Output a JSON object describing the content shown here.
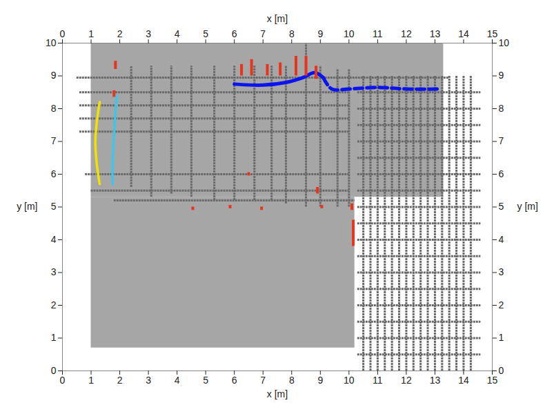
{
  "chart_data": {
    "type": "profiles",
    "x_label": "x [m]",
    "y_label": "y [m]",
    "xlim": [
      0,
      15
    ],
    "ylim": [
      0,
      10
    ],
    "xticks": [
      0,
      1,
      2,
      3,
      4,
      5,
      6,
      7,
      8,
      9,
      10,
      11,
      12,
      13,
      14,
      15
    ],
    "yticks": [
      0,
      1,
      2,
      3,
      4,
      5,
      6,
      7,
      8,
      9,
      10
    ],
    "grid": false,
    "background": {
      "color": "#a6a6a6",
      "rects": [
        [
          1.0,
          5.3,
          13.3,
          10.0
        ],
        [
          1.0,
          0.7,
          10.2,
          5.3
        ]
      ]
    },
    "vertical_profiles": {
      "color": "#6a6a6a",
      "lines": [
        [
          2.4,
          5.6,
          9.3
        ],
        [
          3.1,
          5.3,
          9.3
        ],
        [
          3.8,
          5.4,
          9.3
        ],
        [
          4.5,
          5.3,
          9.3
        ],
        [
          5.3,
          5.2,
          9.3
        ],
        [
          6.0,
          5.2,
          9.3
        ],
        [
          6.7,
          5.2,
          9.3
        ],
        [
          7.3,
          5.2,
          9.3
        ],
        [
          7.8,
          5.1,
          9.3
        ],
        [
          8.5,
          5.0,
          10.0
        ],
        [
          9.0,
          5.0,
          9.3
        ],
        [
          9.6,
          5.0,
          9.2
        ],
        [
          10.0,
          5.0,
          9.2
        ],
        [
          10.5,
          0.0,
          9.0
        ],
        [
          10.75,
          0.0,
          9.0
        ],
        [
          11.0,
          0.0,
          9.0
        ],
        [
          11.25,
          0.0,
          9.0
        ],
        [
          11.5,
          0.0,
          9.0
        ],
        [
          11.75,
          0.0,
          9.0
        ],
        [
          12.0,
          0.0,
          9.0
        ],
        [
          12.25,
          0.0,
          9.0
        ],
        [
          12.5,
          0.0,
          9.0
        ],
        [
          12.75,
          0.0,
          9.0
        ],
        [
          13.0,
          0.0,
          9.0
        ],
        [
          13.25,
          0.0,
          9.0
        ],
        [
          13.5,
          0.0,
          9.0
        ],
        [
          13.75,
          0.0,
          9.0
        ],
        [
          14.0,
          0.0,
          9.0
        ],
        [
          14.25,
          0.0,
          9.0
        ]
      ]
    },
    "horizontal_profiles": {
      "color": "#6a6a6a",
      "lines": [
        [
          8.95,
          0.5,
          13.5
        ],
        [
          8.5,
          0.6,
          10.0
        ],
        [
          8.1,
          0.6,
          10.0
        ],
        [
          7.7,
          0.6,
          10.0
        ],
        [
          7.3,
          0.6,
          10.0
        ],
        [
          6.0,
          0.8,
          10.0
        ],
        [
          5.5,
          1.0,
          10.0
        ],
        [
          5.2,
          1.8,
          10.2
        ],
        [
          0.5,
          10.3,
          14.6
        ],
        [
          1.0,
          10.3,
          14.6
        ],
        [
          1.5,
          10.3,
          14.6
        ],
        [
          2.0,
          10.3,
          14.6
        ],
        [
          2.5,
          10.3,
          14.6
        ],
        [
          3.0,
          10.3,
          14.6
        ],
        [
          3.5,
          10.3,
          14.6
        ],
        [
          4.0,
          10.3,
          14.6
        ],
        [
          4.5,
          10.3,
          14.6
        ],
        [
          5.0,
          10.3,
          14.6
        ],
        [
          5.5,
          10.3,
          14.6
        ],
        [
          6.0,
          10.3,
          14.6
        ],
        [
          6.5,
          10.3,
          14.6
        ],
        [
          7.0,
          10.3,
          14.6
        ],
        [
          7.5,
          10.3,
          14.6
        ],
        [
          8.0,
          10.3,
          14.6
        ],
        [
          8.5,
          10.3,
          14.6
        ]
      ]
    },
    "series": [
      {
        "color": "#f2e200",
        "line_style": "solid",
        "points": [
          [
            1.3,
            5.7
          ],
          [
            1.2,
            6.3
          ],
          [
            1.15,
            7.0
          ],
          [
            1.2,
            7.6
          ],
          [
            1.3,
            8.2
          ]
        ]
      },
      {
        "color": "#3cc6ee",
        "line_style": "solid",
        "points": [
          [
            1.75,
            5.7
          ],
          [
            1.75,
            6.4
          ],
          [
            1.8,
            7.2
          ],
          [
            1.85,
            7.9
          ],
          [
            1.9,
            8.4
          ]
        ]
      },
      {
        "color": "#0a14f0",
        "line_style": "solid",
        "points": [
          [
            6.0,
            8.75
          ],
          [
            7.0,
            8.72
          ],
          [
            7.8,
            8.8
          ],
          [
            8.4,
            8.95
          ],
          [
            8.8,
            9.1
          ],
          [
            9.1,
            8.95
          ]
        ]
      },
      {
        "color": "#0a14f0",
        "line_style": "dashed",
        "points": [
          [
            9.1,
            8.95
          ],
          [
            9.4,
            8.6
          ],
          [
            10.0,
            8.6
          ],
          [
            11.0,
            8.65
          ],
          [
            12.0,
            8.6
          ],
          [
            13.2,
            8.6
          ]
        ]
      }
    ],
    "anomalies": {
      "color": "#e8341c",
      "marks": [
        [
          1.8,
          8.35,
          8.55
        ],
        [
          1.85,
          9.2,
          9.45
        ],
        [
          6.25,
          9.0,
          9.35
        ],
        [
          6.6,
          9.0,
          9.5
        ],
        [
          7.15,
          9.0,
          9.35
        ],
        [
          7.6,
          9.0,
          9.4
        ],
        [
          8.15,
          9.0,
          9.6
        ],
        [
          8.5,
          9.0,
          9.6
        ],
        [
          8.85,
          8.9,
          9.3
        ],
        [
          4.55,
          4.9,
          5.0
        ],
        [
          5.85,
          4.95,
          5.05
        ],
        [
          6.95,
          4.9,
          5.0
        ],
        [
          9.05,
          4.95,
          5.05
        ],
        [
          6.5,
          5.95,
          6.05
        ],
        [
          8.9,
          5.4,
          5.6
        ],
        [
          10.15,
          3.8,
          4.6
        ],
        [
          10.1,
          4.9,
          5.1
        ]
      ]
    }
  }
}
